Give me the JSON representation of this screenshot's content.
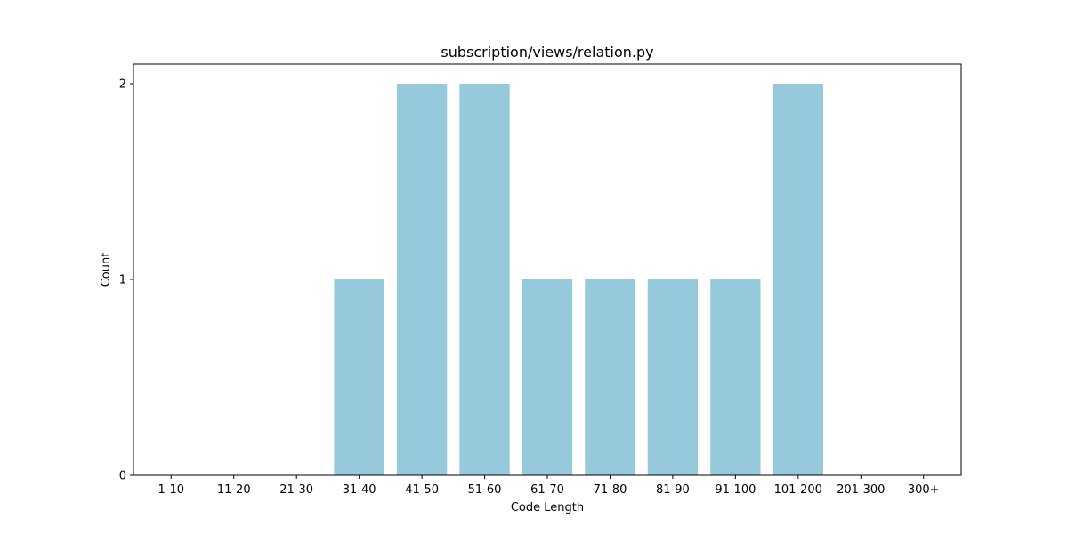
{
  "chart_data": {
    "type": "bar",
    "title": "subscription/views/relation.py",
    "xlabel": "Code Length",
    "ylabel": "Count",
    "categories": [
      "1-10",
      "11-20",
      "21-30",
      "31-40",
      "41-50",
      "51-60",
      "61-70",
      "71-80",
      "81-90",
      "91-100",
      "101-200",
      "201-300",
      "300+"
    ],
    "values": [
      0,
      0,
      0,
      1,
      2,
      2,
      1,
      1,
      1,
      1,
      2,
      0,
      0
    ],
    "ylim": [
      0,
      2.1
    ],
    "yticks": [
      0,
      1,
      2
    ],
    "bar_color": "#96c9dc",
    "grid": false,
    "legend": "none"
  }
}
